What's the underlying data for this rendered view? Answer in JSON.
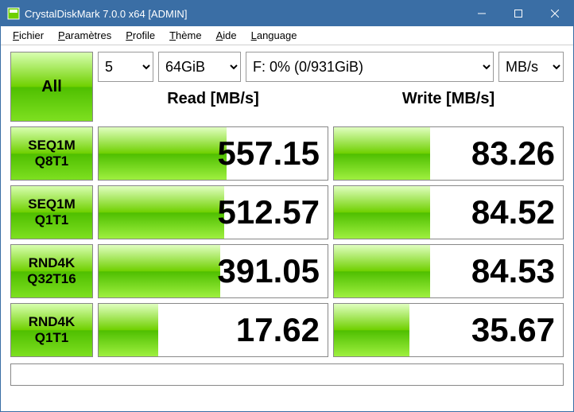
{
  "window": {
    "title": "CrystalDiskMark 7.0.0 x64 [ADMIN]"
  },
  "menu": [
    {
      "label": "Fichier",
      "u": 0
    },
    {
      "label": "Paramètres",
      "u": 0
    },
    {
      "label": "Profile",
      "u": 0
    },
    {
      "label": "Thème",
      "u": 0
    },
    {
      "label": "Aide",
      "u": 0
    },
    {
      "label": "Language",
      "u": 0
    }
  ],
  "toolbar": {
    "all_label": "All",
    "runs": "5",
    "size": "64GiB",
    "drive": "F: 0% (0/931GiB)",
    "unit": "MB/s"
  },
  "columns": {
    "read": "Read [MB/s]",
    "write": "Write [MB/s]"
  },
  "tests": [
    {
      "l1": "SEQ1M",
      "l2": "Q8T1",
      "read": "557.15",
      "read_pct": 56,
      "write": "83.26",
      "write_pct": 42
    },
    {
      "l1": "SEQ1M",
      "l2": "Q1T1",
      "read": "512.57",
      "read_pct": 55,
      "write": "84.52",
      "write_pct": 42
    },
    {
      "l1": "RND4K",
      "l2": "Q32T16",
      "read": "391.05",
      "read_pct": 53,
      "write": "84.53",
      "write_pct": 42
    },
    {
      "l1": "RND4K",
      "l2": "Q1T1",
      "read": "17.62",
      "read_pct": 26,
      "write": "35.67",
      "write_pct": 33
    }
  ],
  "style": {
    "accent": "#3a6ea5",
    "gradient_light": "#d8ffb0",
    "gradient_mid": "#6fd000",
    "gradient_dark": "#4fbf00"
  }
}
